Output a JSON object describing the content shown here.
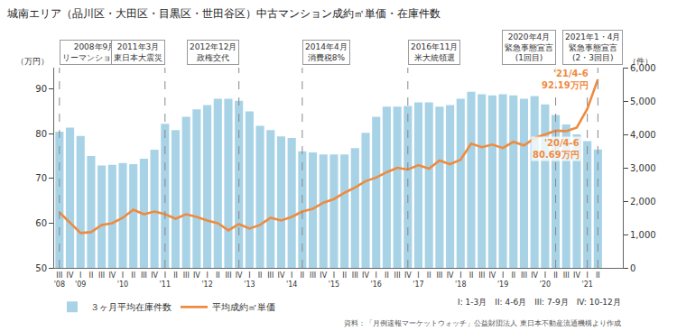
{
  "chart_data": {
    "type": "bar",
    "title": "城南エリア（品川区・大田区・目黒区・世田谷区）中古マンション成約㎡単価・在庫件数",
    "categories": [
      "III '08",
      "IV",
      "I '09",
      "II",
      "III",
      "IV",
      "I '10",
      "II",
      "III",
      "IV",
      "I '11",
      "II",
      "III",
      "IV",
      "I '12",
      "II",
      "III",
      "IV",
      "I '13",
      "II",
      "III",
      "IV",
      "I '14",
      "II",
      "III",
      "IV",
      "I '15",
      "II",
      "III",
      "IV",
      "I '16",
      "II",
      "III",
      "IV",
      "I '17",
      "II",
      "III",
      "IV",
      "I '18",
      "II",
      "III",
      "IV",
      "I '19",
      "II",
      "III",
      "IV",
      "I '20",
      "II",
      "III",
      "IV",
      "I '21",
      "II"
    ],
    "series": [
      {
        "name": "３ヶ月平均在庫件数",
        "type": "bar",
        "color": "#a8d3e6",
        "axis": "y2",
        "values": [
          4080,
          4200,
          3950,
          3350,
          3070,
          3090,
          3140,
          3110,
          3270,
          3540,
          4320,
          4130,
          4530,
          4750,
          4880,
          5070,
          5070,
          5010,
          4690,
          4260,
          4130,
          3940,
          3890,
          3490,
          3460,
          3400,
          3400,
          3400,
          3590,
          4050,
          4530,
          4830,
          4830,
          4850,
          4960,
          4960,
          4830,
          4880,
          5070,
          5280,
          5200,
          5170,
          5200,
          5170,
          5070,
          5150,
          4900,
          4580,
          4300,
          4000,
          3800,
          3550
        ]
      },
      {
        "name": "平均成約㎡単価",
        "type": "line",
        "color": "#ee8b3f",
        "values": [
          62.4,
          60.2,
          57.8,
          58.0,
          59.6,
          60.0,
          61.2,
          63.0,
          62.0,
          62.6,
          62.0,
          61.0,
          62.0,
          61.4,
          60.6,
          60.0,
          58.4,
          59.8,
          58.8,
          59.6,
          61.2,
          60.6,
          61.4,
          62.6,
          63.2,
          64.6,
          65.4,
          66.8,
          68.0,
          69.4,
          70.2,
          71.4,
          72.4,
          72.0,
          73.0,
          72.2,
          74.0,
          73.2,
          74.2,
          77.8,
          77.0,
          77.6,
          76.8,
          78.2,
          77.4,
          79.0,
          79.8,
          80.69,
          80.6,
          81.4,
          85.6,
          92.19
        ]
      }
    ],
    "ylim": [
      50,
      94.8
    ],
    "yticks": [
      50,
      60,
      70,
      80,
      90
    ],
    "y_label": "（万円）",
    "y2lim": [
      0,
      6000
    ],
    "y2ticks": [
      0,
      {
        "value": 1000,
        "label": "1,000"
      },
      {
        "value": 2000,
        "label": "2,000"
      },
      {
        "value": 3000,
        "label": "3,000"
      },
      {
        "value": 4000,
        "label": "4,000"
      },
      {
        "value": 5000,
        "label": "5,000"
      },
      {
        "value": 6000,
        "label": "6,000"
      }
    ],
    "y2_label": "（件）",
    "events": [
      {
        "at": [
          0
        ],
        "lines": [
          "2008年9月",
          "リーマンショック"
        ]
      },
      {
        "at": [
          10
        ],
        "lines": [
          "2011年3月",
          "東日本大震災"
        ]
      },
      {
        "at": [
          17
        ],
        "lines": [
          "2012年12月",
          "政権交代"
        ]
      },
      {
        "at": [
          23
        ],
        "lines": [
          "2014年4月",
          "消費税8%"
        ]
      },
      {
        "at": [
          33
        ],
        "lines": [
          "2016年11月",
          "米大統領選"
        ]
      },
      {
        "at": [
          47
        ],
        "lines": [
          "2020年4月",
          "緊急事態宣言",
          "(1回目)"
        ]
      },
      {
        "at": [
          50,
          51
        ],
        "lines": [
          "2021年1・4月",
          "緊急事態宣言",
          "(2・3回目)"
        ]
      }
    ],
    "annotations": [
      {
        "at": 47,
        "lines": [
          "'20/4-6",
          "80.69万円"
        ]
      },
      {
        "at": 51,
        "lines": [
          "'21/4-6",
          "92.19万円"
        ]
      }
    ],
    "notes": [
      "I: 1-3月　II: 4-6月　III: 7-9月　IV: 10-12月",
      "資料：「月例速報マーケットウォッチ」公益財団法人 東日本不動産流通機構より作成"
    ],
    "legend": "bottom",
    "grid": false
  }
}
